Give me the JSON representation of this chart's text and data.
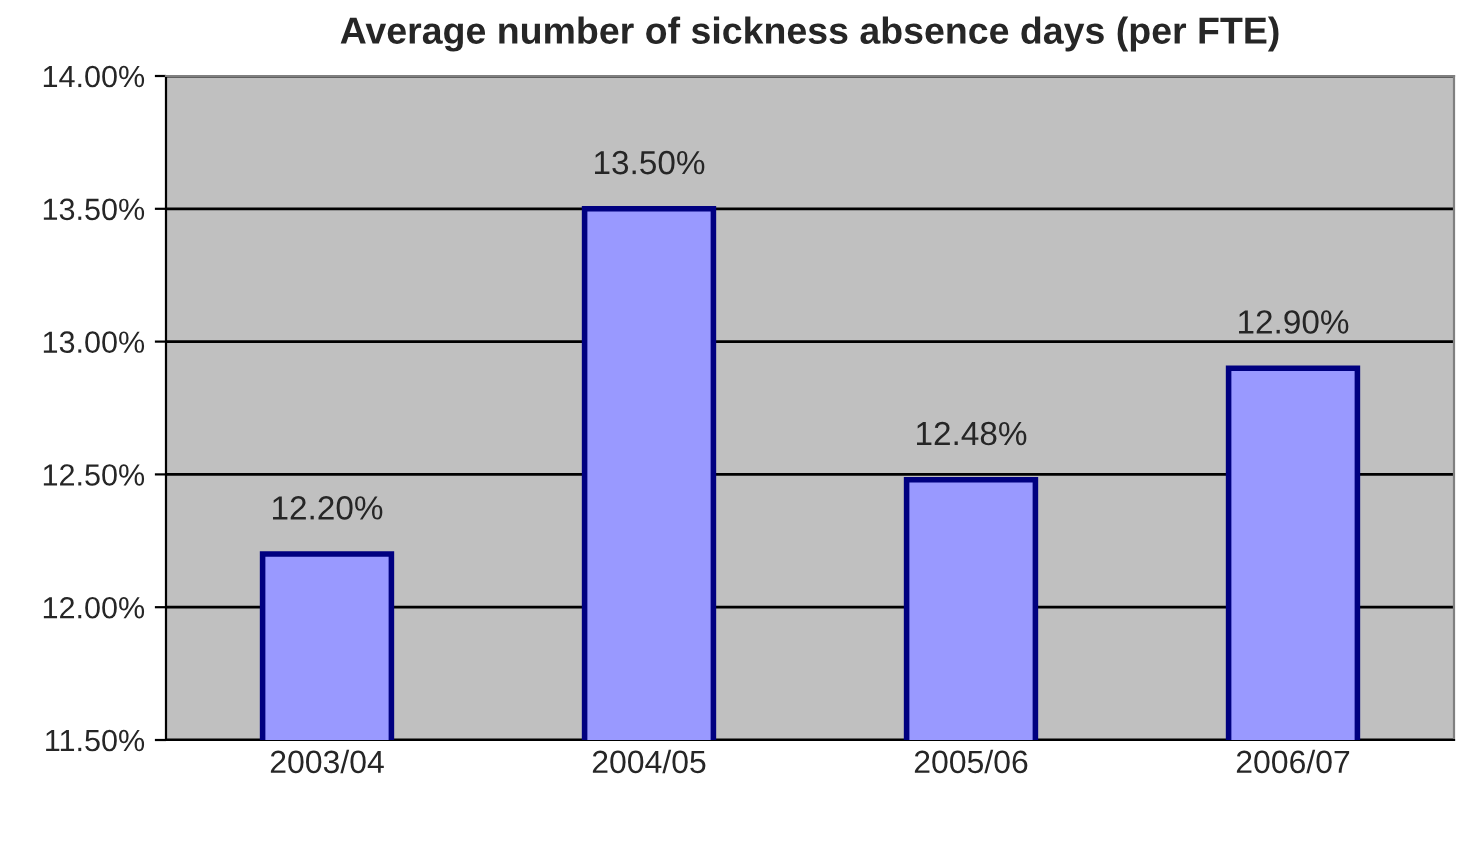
{
  "chart_data": {
    "type": "bar",
    "title": "Average number of sickness absence days (per FTE)",
    "categories": [
      "2003/04",
      "2004/05",
      "2005/06",
      "2006/07"
    ],
    "values": [
      12.2,
      13.5,
      12.48,
      12.9
    ],
    "value_labels": [
      "12.20%",
      "13.50%",
      "12.48%",
      "12.90%"
    ],
    "color": "#9999ff",
    "ylim": [
      11.5,
      14.0
    ],
    "yticks": [
      {
        "value": 11.5,
        "label": "11.50%"
      },
      {
        "value": 12.0,
        "label": "12.00%"
      },
      {
        "value": 12.5,
        "label": "12.50%"
      },
      {
        "value": 13.0,
        "label": "13.00%"
      },
      {
        "value": 13.5,
        "label": "13.50%"
      },
      {
        "value": 14.0,
        "label": "14.00%"
      }
    ],
    "grid": "y",
    "legend": false
  }
}
